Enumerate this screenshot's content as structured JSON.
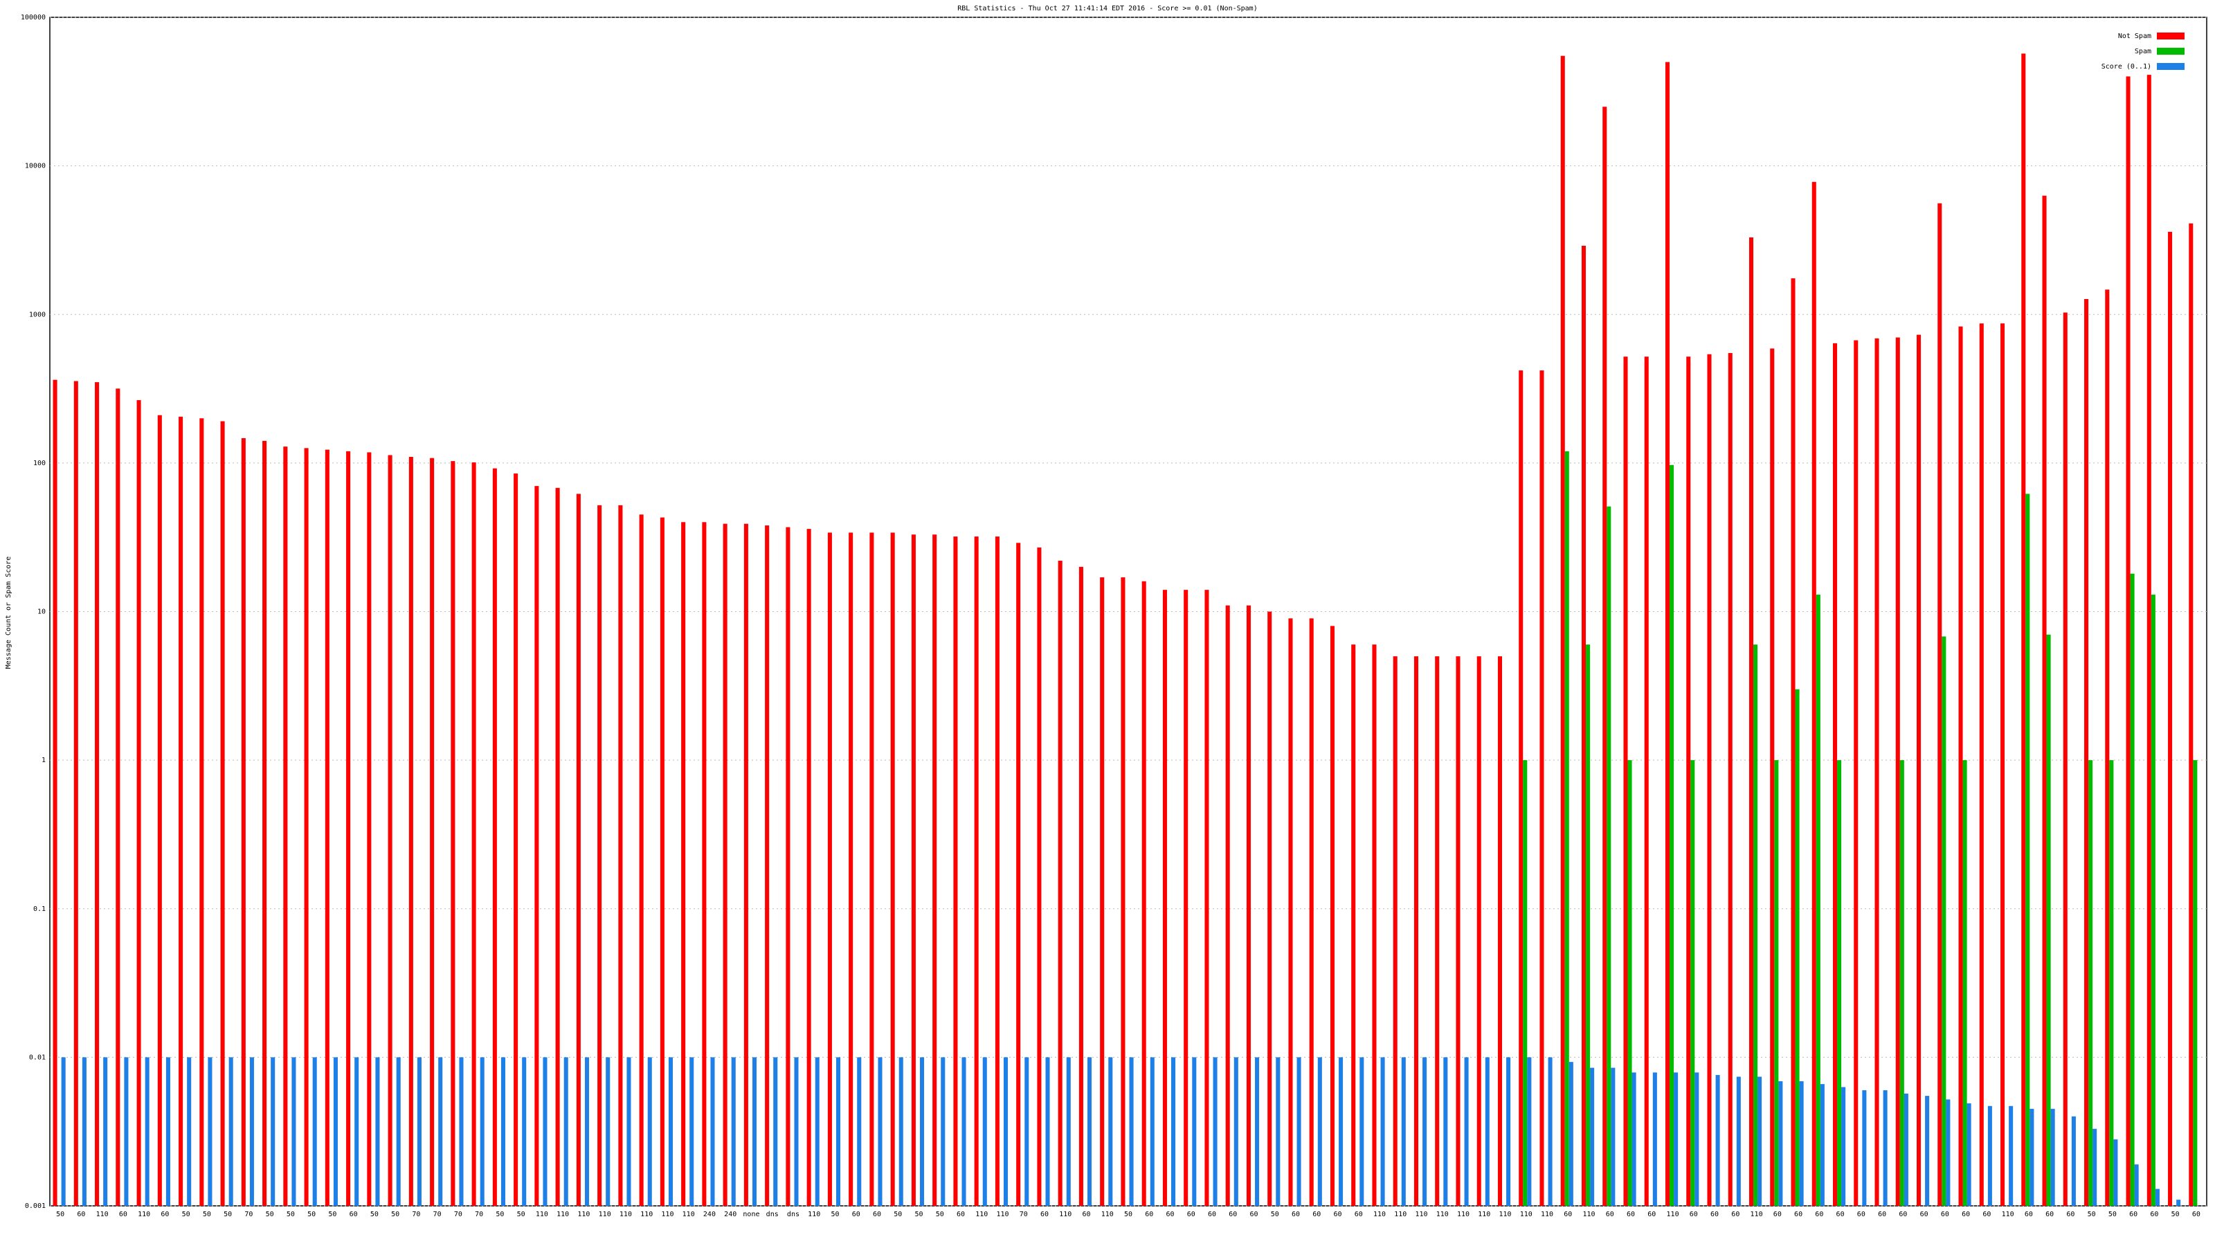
{
  "chart_data": {
    "type": "bar",
    "log_scale": true,
    "grid": true,
    "legend": "top-right",
    "title": "RBL Statistics - Thu Oct 27 11:41:14 EDT 2016 - Score >= 0.01 (Non-Spam)",
    "y_label": "Message Count or Spam Score",
    "ylim": [
      0.001,
      100000
    ],
    "yticks": [
      0.001,
      0.01,
      0.1,
      1,
      10,
      100,
      1000,
      10000,
      100000
    ],
    "categories": [
      "50",
      "60",
      "110",
      "60",
      "110",
      "60",
      "50",
      "50",
      "50",
      "70",
      "50",
      "50",
      "50",
      "50",
      "60",
      "50",
      "50",
      "70",
      "70",
      "70",
      "70",
      "50",
      "50",
      "110",
      "110",
      "110",
      "110",
      "110",
      "110",
      "110",
      "110",
      "240",
      "240",
      "none",
      "dns",
      "dns",
      "110",
      "50",
      "60",
      "60",
      "50",
      "50",
      "50",
      "60",
      "110",
      "110",
      "70",
      "60",
      "110",
      "60",
      "110",
      "50",
      "60",
      "60",
      "60",
      "60",
      "60",
      "60",
      "50",
      "60",
      "60",
      "60",
      "60",
      "110",
      "110",
      "110",
      "110",
      "110",
      "110",
      "110",
      "110",
      "110",
      "60",
      "110",
      "60",
      "60",
      "60",
      "110",
      "60",
      "60",
      "60",
      "110",
      "60",
      "60",
      "60",
      "60",
      "60",
      "60",
      "60",
      "60",
      "60",
      "60",
      "60",
      "110",
      "60",
      "60",
      "60",
      "50",
      "50",
      "60",
      "60",
      "50",
      "60"
    ],
    "series": [
      {
        "name": "Not Spam",
        "color": "#ff0000",
        "values": [
          363,
          356,
          350,
          317,
          265,
          210,
          205,
          200,
          191,
          147,
          141,
          129,
          126,
          123,
          120,
          118,
          113,
          110,
          108,
          103,
          101,
          92,
          85,
          70,
          68,
          62,
          52,
          52,
          45,
          43,
          40,
          40,
          39,
          39,
          38,
          37,
          36,
          34,
          34,
          34,
          34,
          33,
          33,
          32,
          32,
          32,
          29,
          27,
          22,
          20,
          17,
          17,
          16,
          14,
          14,
          14,
          11,
          11,
          10,
          9,
          9,
          8,
          6,
          6,
          5,
          5,
          5,
          5,
          5,
          5,
          420,
          420,
          55000,
          2900,
          25000,
          520,
          520,
          50000,
          520,
          540,
          550,
          3300,
          590,
          1750,
          7800,
          640,
          670,
          690,
          700,
          730,
          5600,
          830,
          870,
          870,
          57000,
          6300,
          1030,
          1270,
          1470,
          40000,
          41000,
          3600,
          4100
        ]
      },
      {
        "name": "Spam",
        "color": "#00bb00",
        "values": [
          null,
          null,
          null,
          null,
          null,
          null,
          null,
          null,
          null,
          null,
          null,
          null,
          null,
          null,
          null,
          null,
          null,
          null,
          null,
          null,
          null,
          null,
          null,
          null,
          null,
          null,
          null,
          null,
          null,
          null,
          null,
          null,
          null,
          null,
          null,
          null,
          null,
          null,
          null,
          null,
          null,
          null,
          null,
          null,
          null,
          null,
          null,
          null,
          null,
          null,
          null,
          null,
          null,
          null,
          null,
          null,
          null,
          null,
          null,
          null,
          null,
          null,
          null,
          null,
          null,
          null,
          null,
          null,
          null,
          null,
          1,
          null,
          120,
          6,
          51,
          1,
          null,
          97,
          1,
          null,
          null,
          6,
          1,
          3,
          13,
          1,
          null,
          null,
          1,
          null,
          6.8,
          1,
          null,
          null,
          62,
          7,
          null,
          1,
          1,
          18,
          13,
          null,
          1
        ]
      },
      {
        "name": "Score (0..1)",
        "color": "#1e7fe6",
        "values": [
          0.01,
          0.01,
          0.01,
          0.01,
          0.01,
          0.01,
          0.01,
          0.01,
          0.01,
          0.01,
          0.01,
          0.01,
          0.01,
          0.01,
          0.01,
          0.01,
          0.01,
          0.01,
          0.01,
          0.01,
          0.01,
          0.01,
          0.01,
          0.01,
          0.01,
          0.01,
          0.01,
          0.01,
          0.01,
          0.01,
          0.01,
          0.01,
          0.01,
          0.01,
          0.01,
          0.01,
          0.01,
          0.01,
          0.01,
          0.01,
          0.01,
          0.01,
          0.01,
          0.01,
          0.01,
          0.01,
          0.01,
          0.01,
          0.01,
          0.01,
          0.01,
          0.01,
          0.01,
          0.01,
          0.01,
          0.01,
          0.01,
          0.01,
          0.01,
          0.01,
          0.01,
          0.01,
          0.01,
          0.01,
          0.01,
          0.01,
          0.01,
          0.01,
          0.01,
          0.01,
          0.01,
          0.01,
          0.0093,
          0.0085,
          0.0085,
          0.0079,
          0.0079,
          0.0079,
          0.0079,
          0.0076,
          0.0074,
          0.0074,
          0.0069,
          0.0069,
          0.0066,
          0.0063,
          0.006,
          0.006,
          0.0057,
          0.0055,
          0.0052,
          0.0049,
          0.0047,
          0.0047,
          0.0045,
          0.0045,
          0.004,
          0.0033,
          0.0028,
          0.0019,
          0.0013,
          0.0011,
          0.001
        ]
      }
    ]
  }
}
